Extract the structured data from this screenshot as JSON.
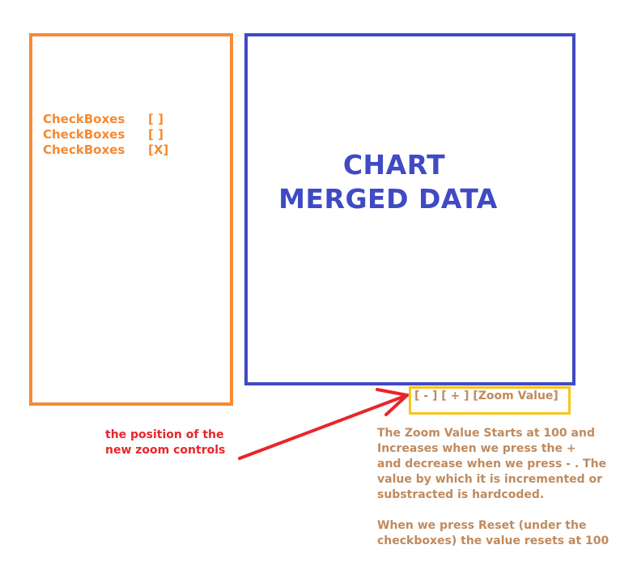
{
  "checkboxes": [
    {
      "label": "CheckBoxes",
      "box": "[ ]"
    },
    {
      "label": "CheckBoxes",
      "box": "[ ]"
    },
    {
      "label": "CheckBoxes",
      "box": "[X]"
    }
  ],
  "chart": {
    "line1": "CHART",
    "line2": "MERGED DATA"
  },
  "zoom_controls": {
    "text": "[ - ] [ + ] [Zoom Value]"
  },
  "annotation": {
    "text": "the position of the\nnew zoom controls"
  },
  "description": {
    "para1": "The Zoom Value Starts at 100 and\nIncreases when we press the +\nand decrease when we press - . The\nvalue by which it is incremented or\nsubstracted is hardcoded.",
    "para2": "When we press Reset (under the\ncheckboxes) the value resets at 100"
  },
  "colors": {
    "orange": "#f58a33",
    "blue": "#3f4ac4",
    "yellow": "#f9c41b",
    "red": "#e8262a",
    "brown": "#c08a5d"
  }
}
